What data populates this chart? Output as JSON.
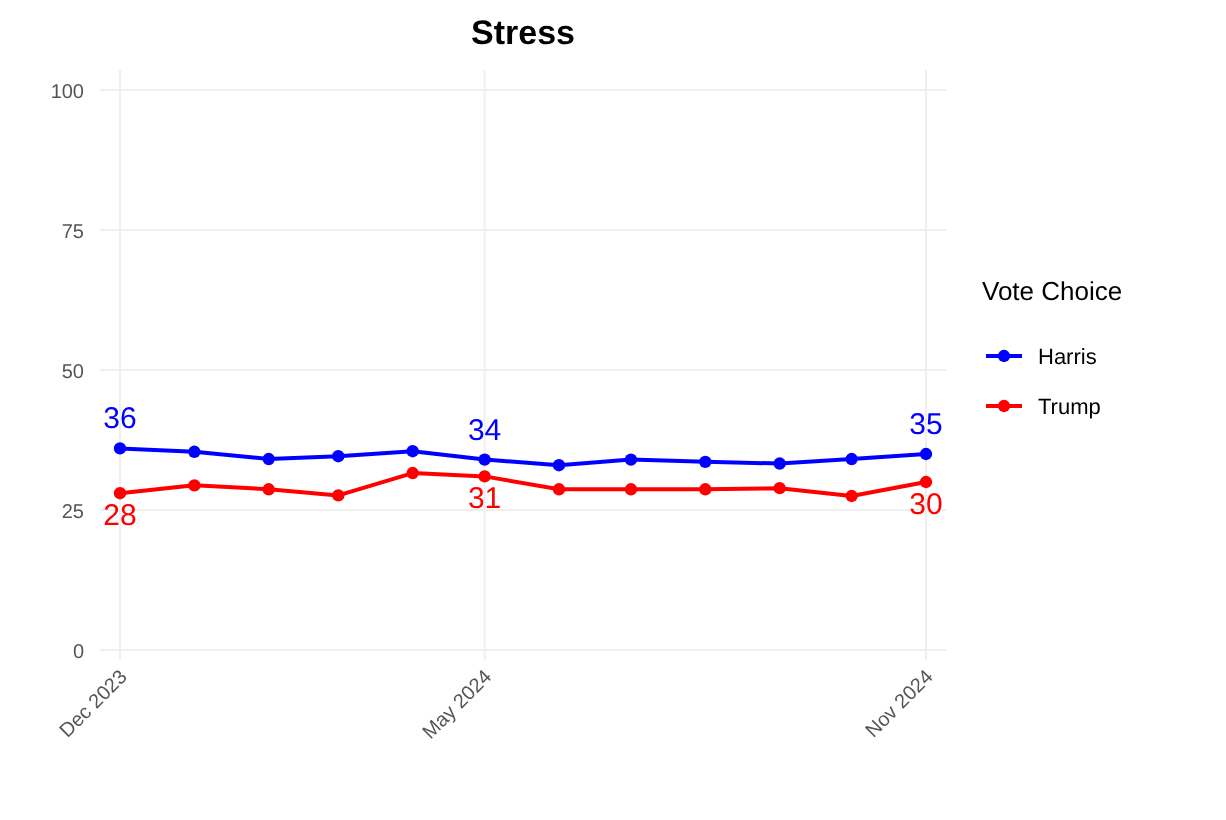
{
  "chart_data": {
    "type": "line",
    "title": "Stress",
    "legend_title": "Vote Choice",
    "legend": "right",
    "grid": true,
    "marker": "circle",
    "line_style": "solid",
    "x": [
      "2023-12",
      "2024-01",
      "2024-02",
      "2024-03",
      "2024-04",
      "2024-05",
      "2024-06",
      "2024-07",
      "2024-08",
      "2024-09",
      "2024-10",
      "2024-11"
    ],
    "xlim": [
      "2023-12",
      "2024-11"
    ],
    "xticks": [
      {
        "value": "2023-12",
        "label": "Dec 2023"
      },
      {
        "value": "2024-05",
        "label": "May 2024"
      },
      {
        "value": "2024-11",
        "label": "Nov 2024"
      }
    ],
    "ylim": [
      0,
      100
    ],
    "yticks": [
      0,
      25,
      50,
      75,
      100
    ],
    "series": [
      {
        "name": "Harris",
        "color": "#0000ff",
        "values": [
          36,
          35.4,
          34.1,
          34.6,
          35.5,
          34,
          33,
          34,
          33.6,
          33.3,
          34.1,
          35
        ],
        "value_labels": [
          "36",
          null,
          null,
          null,
          null,
          "34",
          null,
          null,
          null,
          null,
          null,
          "35"
        ]
      },
      {
        "name": "Trump",
        "color": "#ff0000",
        "values": [
          28,
          29.4,
          28.7,
          27.6,
          31.6,
          31,
          28.7,
          28.7,
          28.7,
          28.9,
          27.5,
          30
        ],
        "value_labels": [
          "28",
          null,
          null,
          null,
          null,
          "31",
          null,
          null,
          null,
          null,
          null,
          "30"
        ]
      }
    ]
  }
}
